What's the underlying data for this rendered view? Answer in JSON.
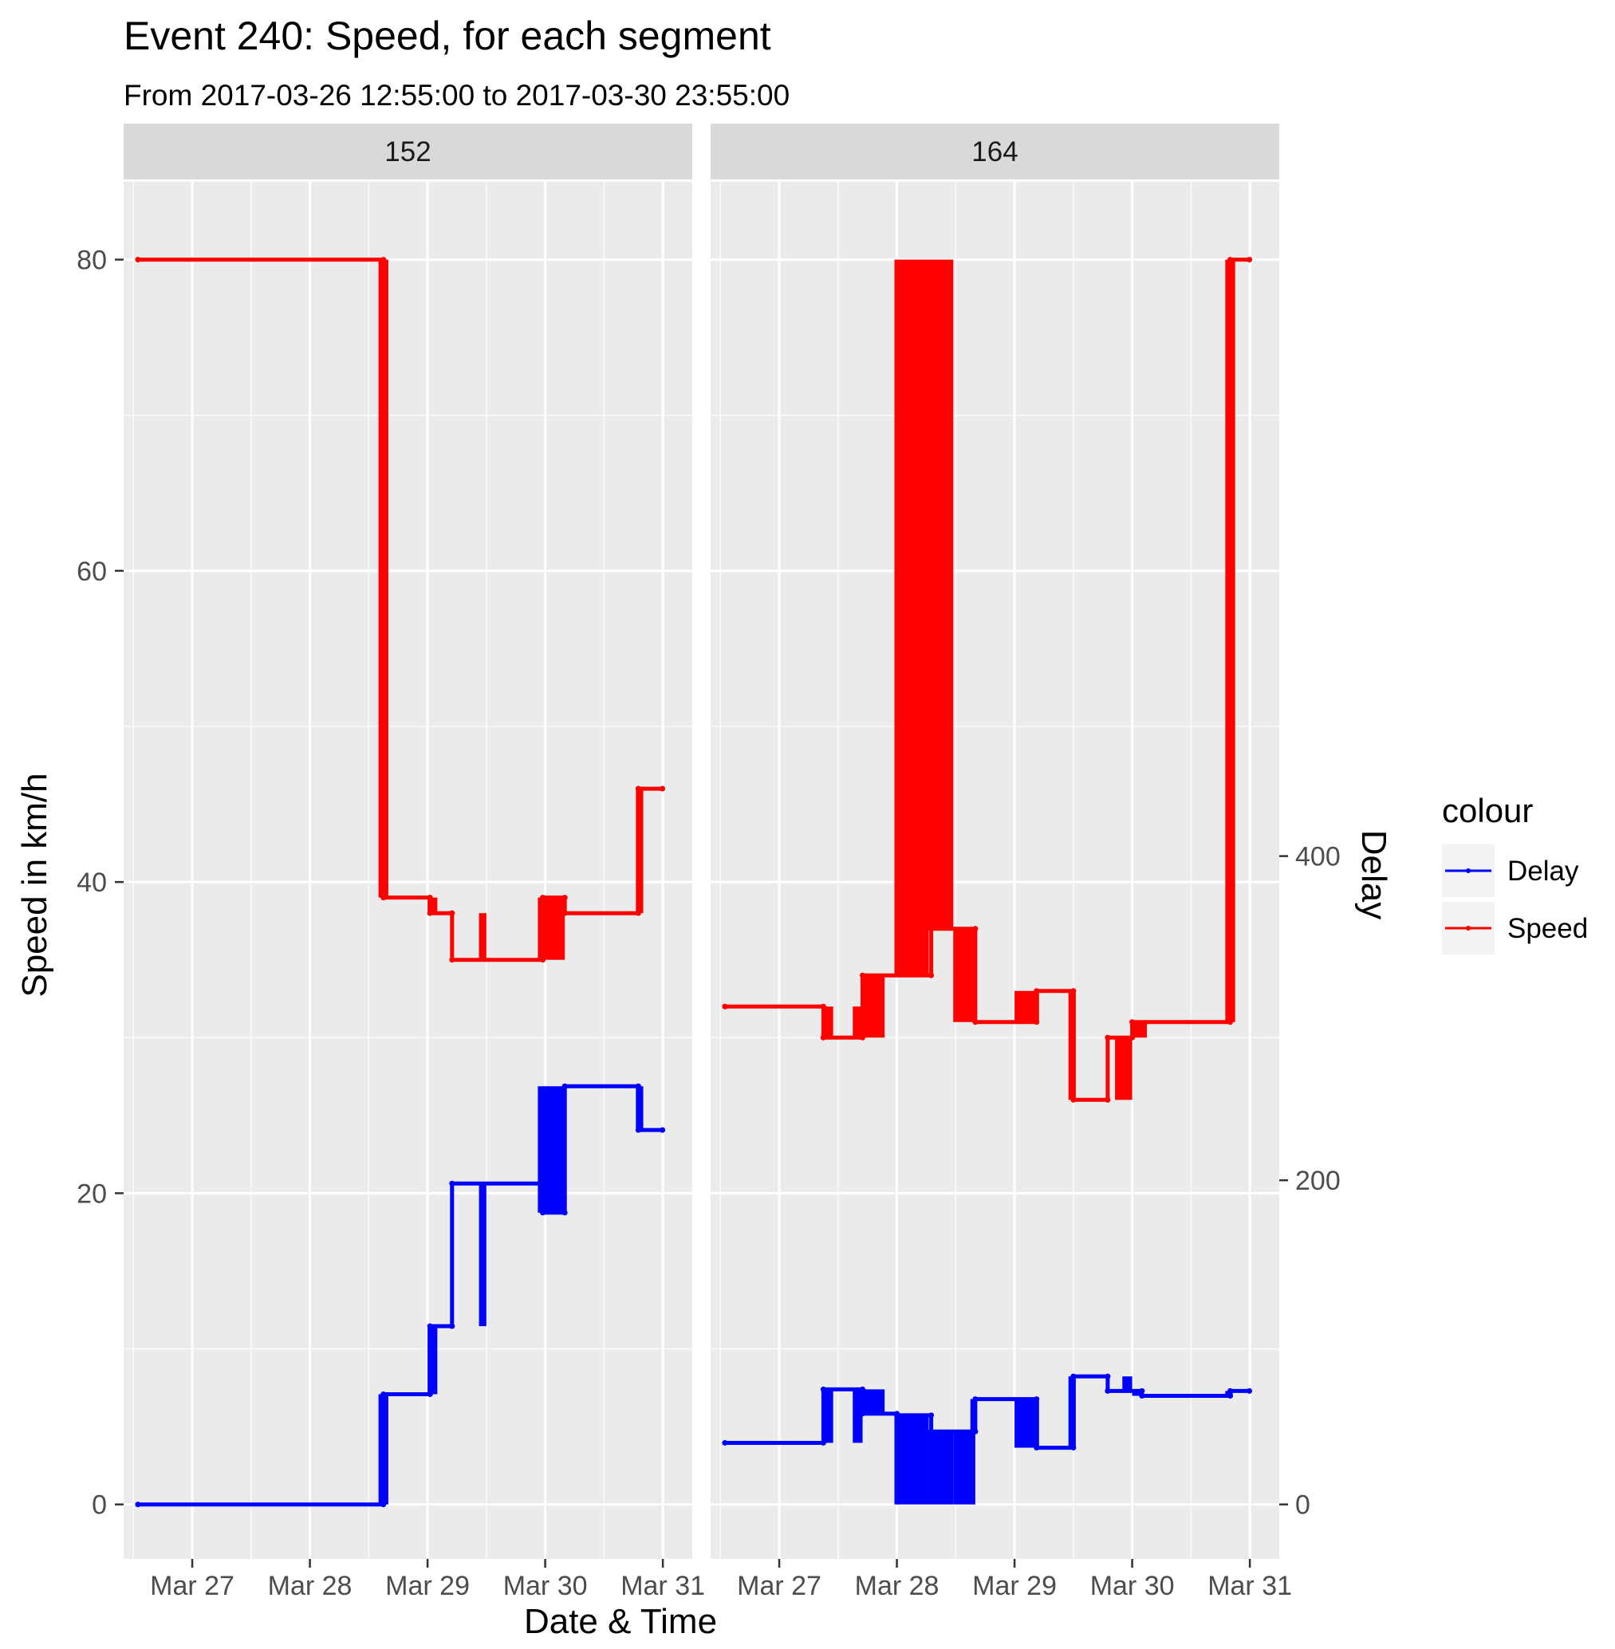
{
  "chart_data": {
    "type": "line",
    "title": "Event 240: Speed, for each segment",
    "subtitle": "From 2017-03-26 12:55:00 to 2017-03-30 23:55:00",
    "xlabel": "Date & Time",
    "ylabel": "Speed in km/h",
    "y2label": "Delay",
    "ylim": [
      -3.5,
      85
    ],
    "y2lim": [
      -33.6,
      816
    ],
    "yticks": [
      0,
      20,
      40,
      60,
      80
    ],
    "y2ticks": [
      0,
      200,
      400
    ],
    "xlim": [
      "2017-03-26T10:00",
      "2017-03-31T06:00"
    ],
    "xticks": [
      {
        "at": "2017-03-27T00:00",
        "label": "Mar 27"
      },
      {
        "at": "2017-03-28T00:00",
        "label": "Mar 28"
      },
      {
        "at": "2017-03-29T00:00",
        "label": "Mar 29"
      },
      {
        "at": "2017-03-30T00:00",
        "label": "Mar 30"
      },
      {
        "at": "2017-03-31T00:00",
        "label": "Mar 31"
      }
    ],
    "grid": true,
    "legend_position": "right",
    "legend": {
      "title": "colour",
      "items": [
        {
          "label": "Delay",
          "color": "#0000ff"
        },
        {
          "label": "Speed",
          "color": "#ff0000"
        }
      ]
    },
    "panels": [
      {
        "label": "152",
        "series": [
          {
            "name": "Speed",
            "axis": "left",
            "color": "#ff0000",
            "points": [
              [
                "2017-03-26T12:55",
                80
              ],
              [
                "2017-03-28T15:00",
                80
              ],
              [
                "2017-03-28T15:00",
                39
              ],
              [
                "2017-03-29T00:30",
                39
              ],
              [
                "2017-03-29T00:30",
                38
              ],
              [
                "2017-03-29T05:00",
                38
              ],
              [
                "2017-03-29T05:00",
                35
              ],
              [
                "2017-03-29T23:30",
                35
              ],
              [
                "2017-03-29T23:30",
                39
              ],
              [
                "2017-03-30T04:00",
                39
              ],
              [
                "2017-03-30T04:00",
                38
              ],
              [
                "2017-03-30T19:00",
                38
              ],
              [
                "2017-03-30T19:00",
                46
              ],
              [
                "2017-03-30T23:55",
                46
              ]
            ]
          },
          {
            "name": "Delay",
            "axis": "right",
            "color": "#0000ff",
            "points": [
              [
                "2017-03-26T12:55",
                0
              ],
              [
                "2017-03-28T15:00",
                0
              ],
              [
                "2017-03-28T15:00",
                68
              ],
              [
                "2017-03-29T00:30",
                68
              ],
              [
                "2017-03-29T00:30",
                110
              ],
              [
                "2017-03-29T05:00",
                110
              ],
              [
                "2017-03-29T05:00",
                198
              ],
              [
                "2017-03-29T23:30",
                198
              ],
              [
                "2017-03-29T23:30",
                180
              ],
              [
                "2017-03-30T04:00",
                180
              ],
              [
                "2017-03-30T04:00",
                258
              ],
              [
                "2017-03-30T19:00",
                258
              ],
              [
                "2017-03-30T19:00",
                231
              ],
              [
                "2017-03-30T23:55",
                231
              ]
            ]
          }
        ],
        "bands": [
          {
            "axis": "left",
            "color": "#ff0000",
            "from": "2017-03-28T14:00",
            "to": "2017-03-28T16:00",
            "low": 39,
            "high": 80
          },
          {
            "axis": "left",
            "color": "#ff0000",
            "from": "2017-03-29T00:00",
            "to": "2017-03-29T02:00",
            "low": 38,
            "high": 39
          },
          {
            "axis": "left",
            "color": "#ff0000",
            "from": "2017-03-29T10:30",
            "to": "2017-03-29T12:00",
            "low": 35,
            "high": 38
          },
          {
            "axis": "left",
            "color": "#ff0000",
            "from": "2017-03-29T22:30",
            "to": "2017-03-30T04:00",
            "low": 35,
            "high": 39
          },
          {
            "axis": "left",
            "color": "#ff0000",
            "from": "2017-03-30T18:30",
            "to": "2017-03-30T20:00",
            "low": 38,
            "high": 46
          },
          {
            "axis": "right",
            "color": "#0000ff",
            "from": "2017-03-28T14:00",
            "to": "2017-03-28T16:00",
            "low": 0,
            "high": 68
          },
          {
            "axis": "right",
            "color": "#0000ff",
            "from": "2017-03-29T00:00",
            "to": "2017-03-29T02:00",
            "low": 68,
            "high": 110
          },
          {
            "axis": "right",
            "color": "#0000ff",
            "from": "2017-03-29T10:30",
            "to": "2017-03-29T12:00",
            "low": 110,
            "high": 198
          },
          {
            "axis": "right",
            "color": "#0000ff",
            "from": "2017-03-29T22:30",
            "to": "2017-03-30T04:00",
            "low": 180,
            "high": 258
          },
          {
            "axis": "right",
            "color": "#0000ff",
            "from": "2017-03-30T18:30",
            "to": "2017-03-30T20:00",
            "low": 231,
            "high": 258
          }
        ]
      },
      {
        "label": "164",
        "series": [
          {
            "name": "Speed",
            "axis": "left",
            "color": "#ff0000",
            "points": [
              [
                "2017-03-26T12:55",
                32
              ],
              [
                "2017-03-27T09:00",
                32
              ],
              [
                "2017-03-27T09:00",
                30
              ],
              [
                "2017-03-27T17:00",
                30
              ],
              [
                "2017-03-27T17:00",
                34
              ],
              [
                "2017-03-28T07:00",
                34
              ],
              [
                "2017-03-28T07:00",
                37
              ],
              [
                "2017-03-28T16:00",
                37
              ],
              [
                "2017-03-28T16:00",
                31
              ],
              [
                "2017-03-29T04:30",
                31
              ],
              [
                "2017-03-29T04:30",
                33
              ],
              [
                "2017-03-29T12:00",
                33
              ],
              [
                "2017-03-29T12:00",
                26
              ],
              [
                "2017-03-29T19:00",
                26
              ],
              [
                "2017-03-29T19:00",
                30
              ],
              [
                "2017-03-30T00:00",
                30
              ],
              [
                "2017-03-30T00:00",
                31
              ],
              [
                "2017-03-30T20:00",
                31
              ],
              [
                "2017-03-30T20:00",
                80
              ],
              [
                "2017-03-30T23:55",
                80
              ]
            ]
          },
          {
            "name": "Delay",
            "axis": "right",
            "color": "#0000ff",
            "points": [
              [
                "2017-03-26T12:55",
                38
              ],
              [
                "2017-03-27T09:00",
                38
              ],
              [
                "2017-03-27T09:00",
                71
              ],
              [
                "2017-03-27T17:00",
                71
              ],
              [
                "2017-03-27T17:00",
                56
              ],
              [
                "2017-03-28T00:00",
                56
              ],
              [
                "2017-03-28T00:00",
                55
              ],
              [
                "2017-03-28T07:00",
                55
              ],
              [
                "2017-03-28T07:00",
                45
              ],
              [
                "2017-03-28T16:00",
                45
              ],
              [
                "2017-03-28T16:00",
                65
              ],
              [
                "2017-03-29T04:30",
                65
              ],
              [
                "2017-03-29T04:30",
                35
              ],
              [
                "2017-03-29T12:00",
                35
              ],
              [
                "2017-03-29T12:00",
                79
              ],
              [
                "2017-03-29T19:00",
                79
              ],
              [
                "2017-03-29T19:00",
                70
              ],
              [
                "2017-03-30T02:00",
                70
              ],
              [
                "2017-03-30T02:00",
                67
              ],
              [
                "2017-03-30T20:00",
                67
              ],
              [
                "2017-03-30T20:00",
                70
              ],
              [
                "2017-03-30T23:55",
                70
              ]
            ]
          }
        ],
        "bands": [
          {
            "axis": "left",
            "color": "#ff0000",
            "from": "2017-03-27T09:00",
            "to": "2017-03-27T11:00",
            "low": 30,
            "high": 32
          },
          {
            "axis": "left",
            "color": "#ff0000",
            "from": "2017-03-27T15:00",
            "to": "2017-03-27T17:00",
            "low": 30,
            "high": 32
          },
          {
            "axis": "left",
            "color": "#ff0000",
            "from": "2017-03-27T17:00",
            "to": "2017-03-27T21:30",
            "low": 30,
            "high": 34
          },
          {
            "axis": "left",
            "color": "#ff0000",
            "from": "2017-03-27T23:30",
            "to": "2017-03-28T06:30",
            "low": 34,
            "high": 80
          },
          {
            "axis": "left",
            "color": "#ff0000",
            "from": "2017-03-28T06:30",
            "to": "2017-03-28T11:30",
            "low": 37,
            "high": 80
          },
          {
            "axis": "left",
            "color": "#ff0000",
            "from": "2017-03-28T11:30",
            "to": "2017-03-28T16:00",
            "low": 31,
            "high": 37
          },
          {
            "axis": "left",
            "color": "#ff0000",
            "from": "2017-03-29T00:00",
            "to": "2017-03-29T05:00",
            "low": 31,
            "high": 33
          },
          {
            "axis": "left",
            "color": "#ff0000",
            "from": "2017-03-29T11:00",
            "to": "2017-03-29T12:30",
            "low": 26,
            "high": 33
          },
          {
            "axis": "left",
            "color": "#ff0000",
            "from": "2017-03-29T20:30",
            "to": "2017-03-30T00:00",
            "low": 26,
            "high": 30
          },
          {
            "axis": "left",
            "color": "#ff0000",
            "from": "2017-03-30T00:00",
            "to": "2017-03-30T03:00",
            "low": 30,
            "high": 31
          },
          {
            "axis": "left",
            "color": "#ff0000",
            "from": "2017-03-30T19:00",
            "to": "2017-03-30T21:00",
            "low": 31,
            "high": 80
          },
          {
            "axis": "right",
            "color": "#0000ff",
            "from": "2017-03-27T09:00",
            "to": "2017-03-27T11:00",
            "low": 38,
            "high": 71
          },
          {
            "axis": "right",
            "color": "#0000ff",
            "from": "2017-03-27T15:00",
            "to": "2017-03-27T17:00",
            "low": 38,
            "high": 71
          },
          {
            "axis": "right",
            "color": "#0000ff",
            "from": "2017-03-27T17:00",
            "to": "2017-03-27T21:30",
            "low": 56,
            "high": 71
          },
          {
            "axis": "right",
            "color": "#0000ff",
            "from": "2017-03-27T23:30",
            "to": "2017-03-28T06:30",
            "low": 0,
            "high": 55
          },
          {
            "axis": "right",
            "color": "#0000ff",
            "from": "2017-03-28T06:30",
            "to": "2017-03-28T11:30",
            "low": 0,
            "high": 45
          },
          {
            "axis": "right",
            "color": "#0000ff",
            "from": "2017-03-28T11:30",
            "to": "2017-03-28T16:00",
            "low": 0,
            "high": 45
          },
          {
            "axis": "right",
            "color": "#0000ff",
            "from": "2017-03-28T15:00",
            "to": "2017-03-28T16:00",
            "low": 45,
            "high": 65
          },
          {
            "axis": "right",
            "color": "#0000ff",
            "from": "2017-03-29T00:00",
            "to": "2017-03-29T05:00",
            "low": 35,
            "high": 65
          },
          {
            "axis": "right",
            "color": "#0000ff",
            "from": "2017-03-29T11:00",
            "to": "2017-03-29T12:30",
            "low": 35,
            "high": 79
          },
          {
            "axis": "right",
            "color": "#0000ff",
            "from": "2017-03-29T22:00",
            "to": "2017-03-30T00:00",
            "low": 70,
            "high": 79
          },
          {
            "axis": "right",
            "color": "#0000ff",
            "from": "2017-03-30T00:00",
            "to": "2017-03-30T02:00",
            "low": 67,
            "high": 70
          },
          {
            "axis": "right",
            "color": "#0000ff",
            "from": "2017-03-30T19:00",
            "to": "2017-03-30T20:30",
            "low": 67,
            "high": 70
          }
        ]
      }
    ]
  }
}
